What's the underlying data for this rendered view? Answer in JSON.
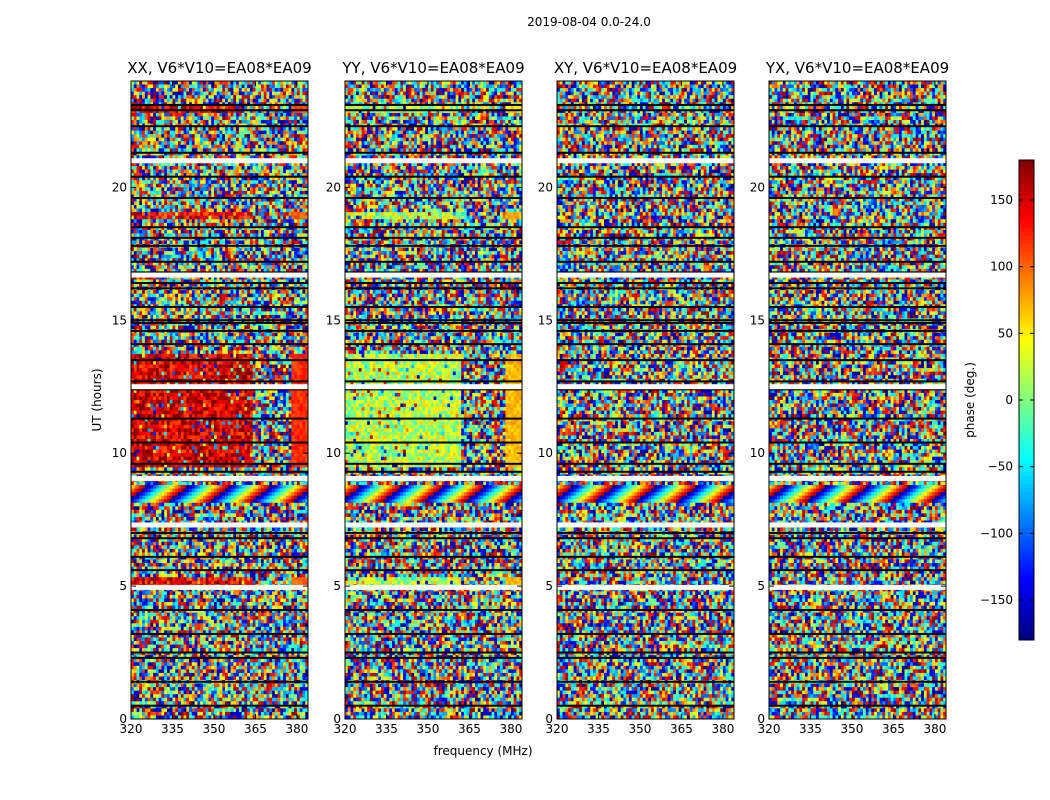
{
  "chart_data": {
    "type": "heatmap",
    "title": "2019-08-04 0.0-24.0",
    "xlabel": "frequency (MHz)",
    "ylabel": "UT (hours)",
    "xlim": [
      320,
      384
    ],
    "ylim": [
      0,
      24
    ],
    "x_ticks": [
      "320",
      "335",
      "350",
      "365",
      "380"
    ],
    "x_tick_values": [
      320,
      335,
      350,
      365,
      380
    ],
    "y_ticks": [
      "0",
      "5",
      "10",
      "15",
      "20"
    ],
    "y_tick_values": [
      0,
      5,
      10,
      15,
      20
    ],
    "colorbar": {
      "label": "phase (deg.)",
      "range": [
        -180,
        180
      ],
      "ticks": [
        "−150",
        "−100",
        "−50",
        "0",
        "50",
        "100",
        "150"
      ],
      "tick_values": [
        -150,
        -100,
        -50,
        0,
        50,
        100,
        150
      ],
      "colormap": "jet"
    },
    "flagged_rows_ut": [
      0.5,
      1.4,
      2.3,
      2.5,
      3.2,
      4.1,
      5.6,
      6.1,
      6.8,
      7.0,
      9.3,
      9.6,
      10.4,
      11.3,
      12.4,
      12.7,
      13.5,
      14.1,
      14.6,
      14.9,
      15.0,
      15.5,
      16.2,
      16.4,
      16.8,
      17.2,
      17.8,
      18.1,
      18.5,
      19.6,
      20.4,
      21.3,
      22.3,
      22.9,
      23.1
    ],
    "white_rows_ut": [
      21.0,
      16.7,
      9.05,
      4.95,
      12.5,
      7.3
    ],
    "panels": [
      {
        "name": "XX",
        "title": "XX, V6*V10=EA08*EA09",
        "coherent_rows": [
          {
            "ut_start": 9.5,
            "ut_end": 13.7,
            "freq_end": 364,
            "phase": 150,
            "tail_phase": 120
          },
          {
            "ut_start": 18.8,
            "ut_end": 19.1,
            "freq_end": 364,
            "phase": 140,
            "tail_phase": 100
          },
          {
            "ut_start": 4.95,
            "ut_end": 5.3,
            "freq_end": 364,
            "phase": 140,
            "tail_phase": 100
          },
          {
            "ut_start": 22.8,
            "ut_end": 23.1,
            "freq_end": 360,
            "phase": 150,
            "tail_phase": 110
          }
        ]
      },
      {
        "name": "YY",
        "title": "YY, V6*V10=EA08*EA09",
        "coherent_rows": [
          {
            "ut_start": 9.5,
            "ut_end": 13.7,
            "freq_end": 362,
            "phase": 20,
            "tail_phase": 70
          },
          {
            "ut_start": 18.8,
            "ut_end": 19.1,
            "freq_end": 362,
            "phase": 20,
            "tail_phase": 70
          },
          {
            "ut_start": 4.95,
            "ut_end": 5.3,
            "freq_end": 362,
            "phase": 20,
            "tail_phase": 70
          },
          {
            "ut_start": 22.8,
            "ut_end": 23.1,
            "freq_end": 360,
            "phase": 20,
            "tail_phase": 60
          }
        ]
      },
      {
        "name": "XY",
        "title": "XY, V6*V10=EA08*EA09",
        "coherent_rows": []
      },
      {
        "name": "YX",
        "title": "YX, V6*V10=EA08*EA09",
        "coherent_rows": []
      }
    ]
  }
}
